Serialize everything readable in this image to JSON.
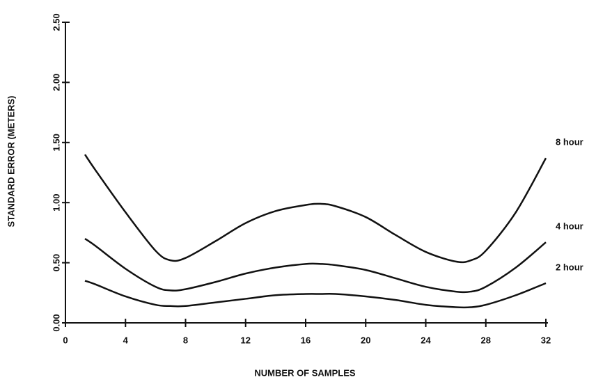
{
  "chart_data": {
    "type": "line",
    "x_label": "NUMBER OF SAMPLES",
    "y_label": "STANDARD ERROR (METERS)",
    "x": [
      1.3,
      2,
      4,
      6,
      7,
      8,
      10,
      12,
      14,
      16,
      17,
      18,
      20,
      22,
      24,
      26,
      27,
      28,
      30,
      32
    ],
    "series": [
      {
        "name": "8 hour",
        "color": "#111111",
        "values": [
          1.4,
          1.27,
          0.92,
          0.6,
          0.52,
          0.54,
          0.68,
          0.83,
          0.93,
          0.98,
          0.99,
          0.97,
          0.88,
          0.73,
          0.59,
          0.51,
          0.52,
          0.6,
          0.92,
          1.37
        ]
      },
      {
        "name": "4 hour",
        "color": "#111111",
        "values": [
          0.7,
          0.64,
          0.45,
          0.3,
          0.27,
          0.28,
          0.34,
          0.41,
          0.46,
          0.49,
          0.49,
          0.48,
          0.44,
          0.37,
          0.3,
          0.26,
          0.26,
          0.3,
          0.46,
          0.67
        ]
      },
      {
        "name": "2 hour",
        "color": "#111111",
        "values": [
          0.35,
          0.32,
          0.22,
          0.15,
          0.14,
          0.14,
          0.17,
          0.2,
          0.23,
          0.24,
          0.24,
          0.24,
          0.22,
          0.19,
          0.15,
          0.13,
          0.13,
          0.15,
          0.23,
          0.33
        ]
      }
    ],
    "xlim": [
      0,
      32
    ],
    "ylim": [
      0,
      2.5
    ],
    "xticks": [
      0,
      4,
      8,
      12,
      16,
      20,
      24,
      28,
      32
    ],
    "yticks": [
      {
        "value": 0,
        "label": "0.00"
      },
      {
        "value": 0.5,
        "label": "0.50"
      },
      {
        "value": 1,
        "label": "1.00"
      },
      {
        "value": 1.5,
        "label": "1.50"
      },
      {
        "value": 2,
        "label": "2.00"
      },
      {
        "value": 2.5,
        "label": "2.50"
      }
    ],
    "grid": false
  }
}
